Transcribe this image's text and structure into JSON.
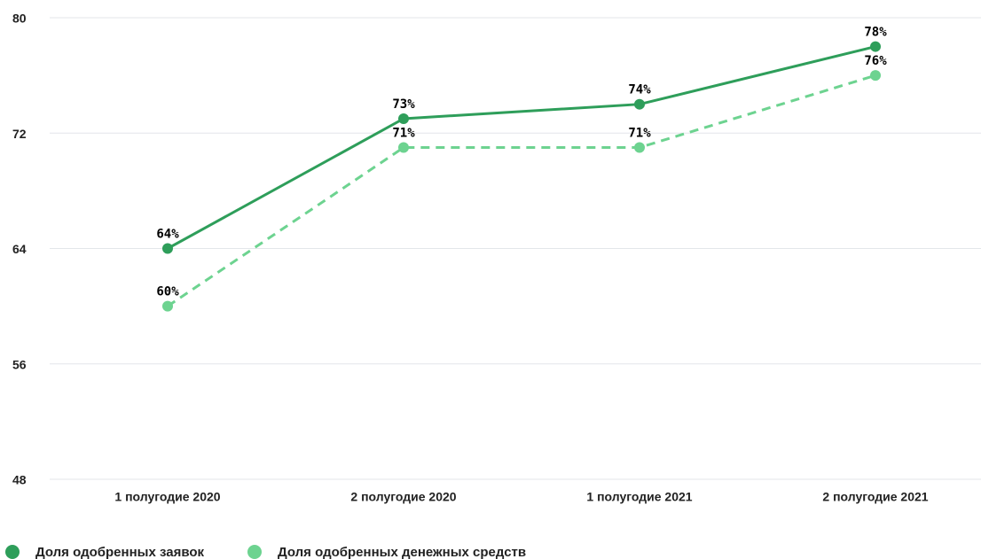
{
  "chart_data": {
    "type": "line",
    "categories": [
      "1 полугодие 2020",
      "2 полугодие 2020",
      "1 полугодие 2021",
      "2 полугодие 2021"
    ],
    "series": [
      {
        "name": "Доля одобренных заявок",
        "color": "#2e9e5a",
        "line_style": "solid",
        "values": [
          64,
          73,
          74,
          78
        ],
        "value_labels": [
          "64%",
          "73%",
          "74%",
          "78%"
        ]
      },
      {
        "name": "Доля одобренных денежных средств",
        "color": "#6dd390",
        "line_style": "dashed",
        "values": [
          60,
          71,
          71,
          76
        ],
        "value_labels": [
          "60%",
          "71%",
          "71%",
          "76%"
        ]
      }
    ],
    "ylim": [
      48,
      80
    ],
    "yticks": [
      48,
      56,
      64,
      72,
      80
    ],
    "grid": true
  }
}
